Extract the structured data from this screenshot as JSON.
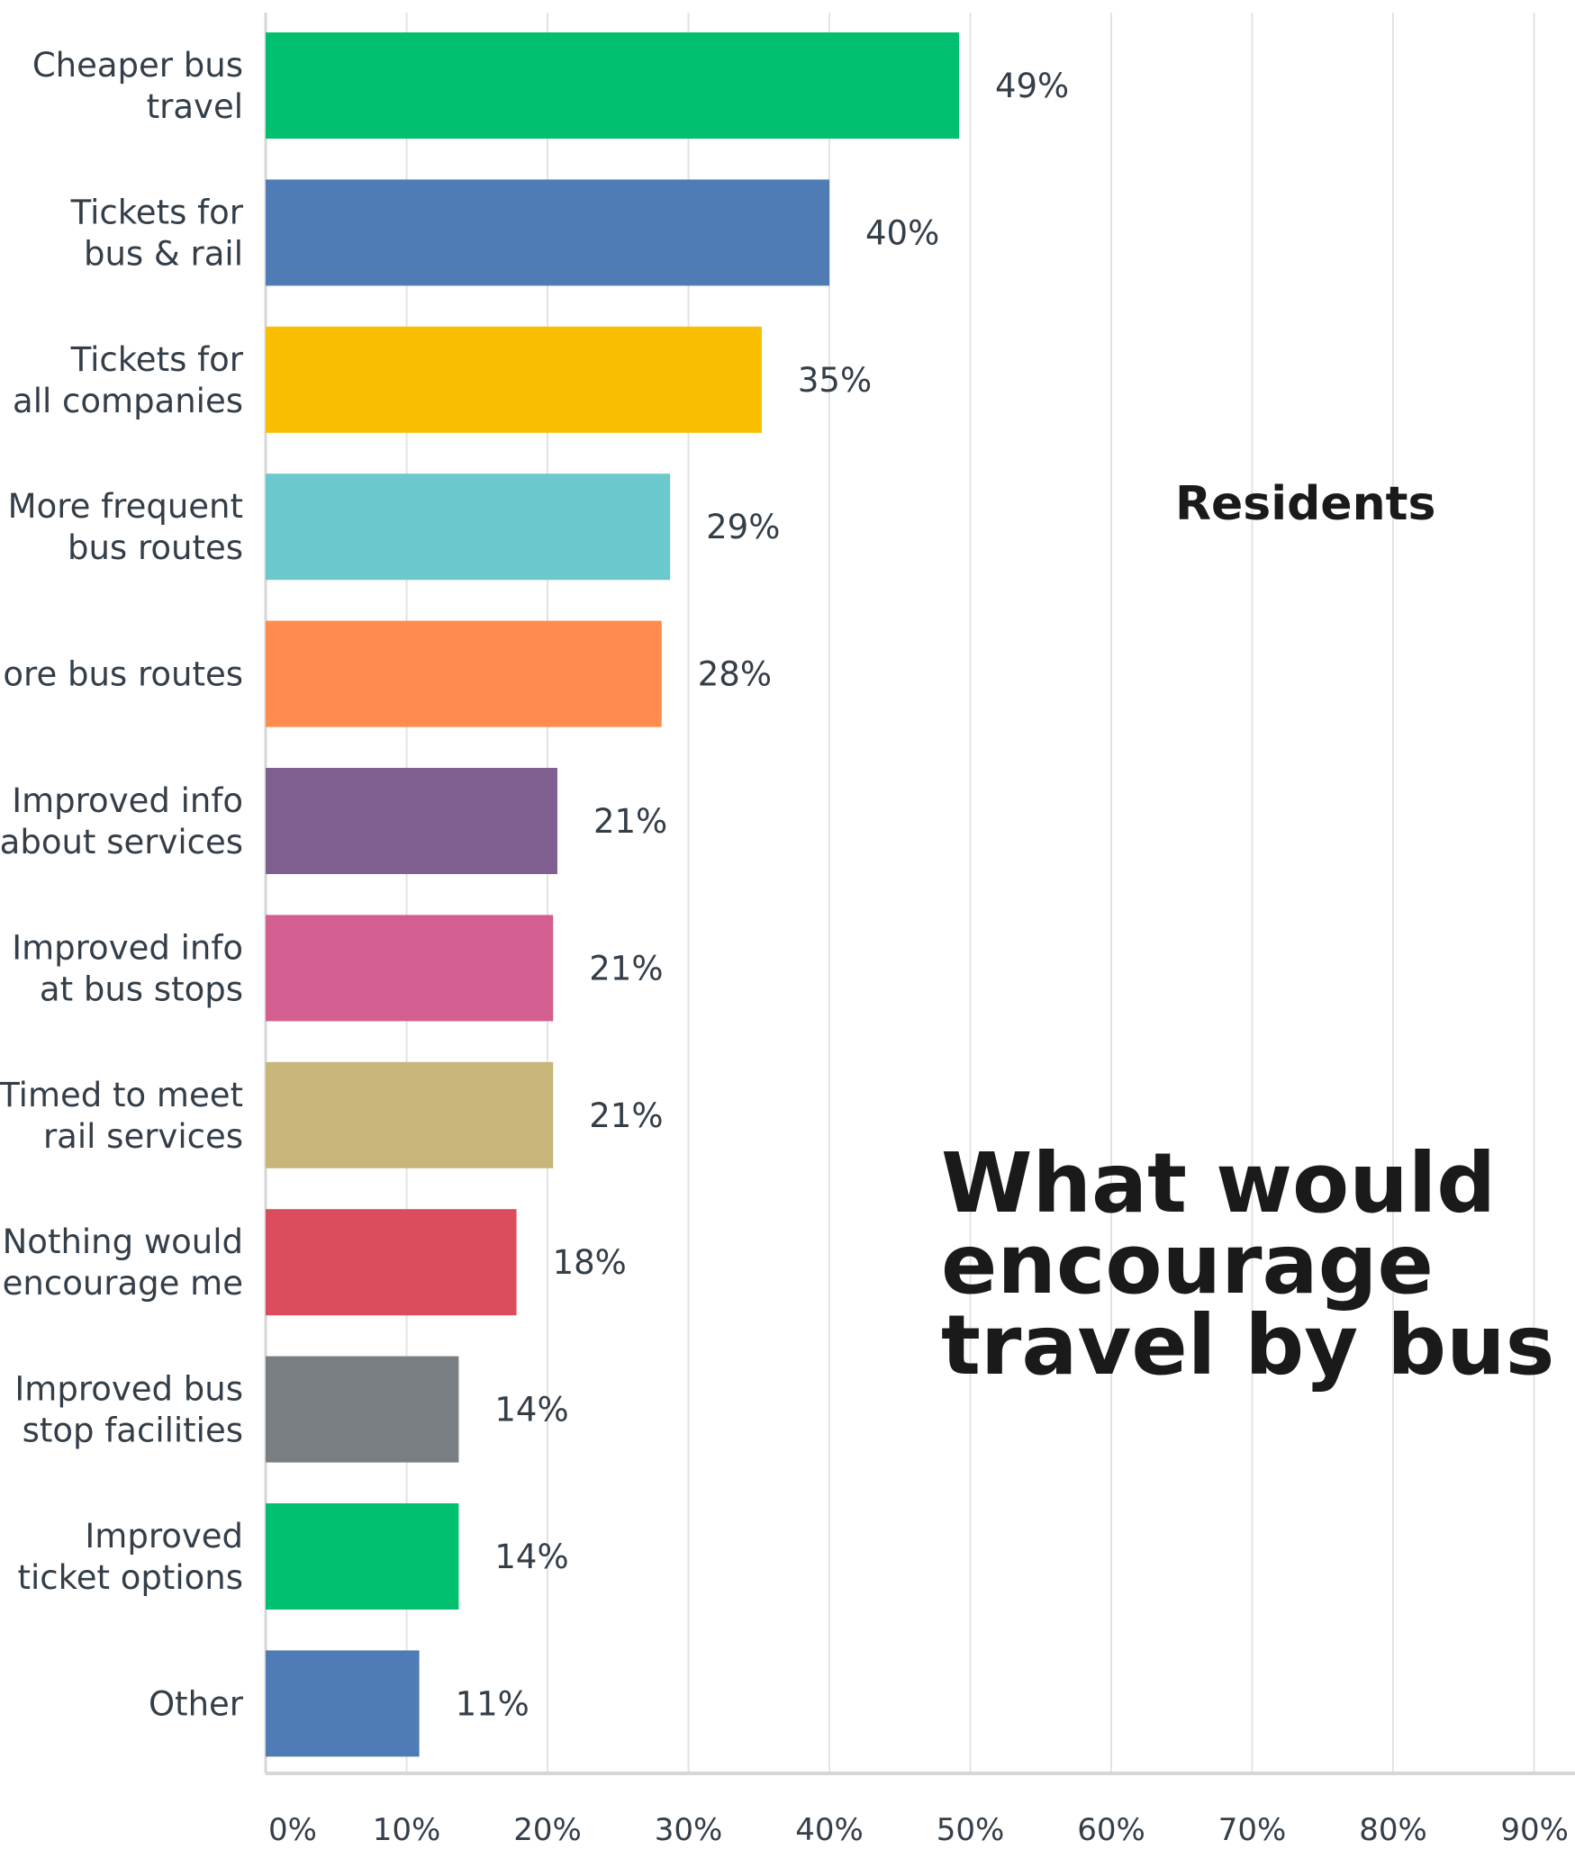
{
  "chart_data": {
    "type": "bar",
    "orientation": "horizontal",
    "title": "What would encourage travel by bus",
    "annotation": "Residents",
    "categories": [
      [
        "Cheaper bus",
        "travel"
      ],
      [
        "Tickets for",
        "bus & rail"
      ],
      [
        "Tickets for",
        "all companies"
      ],
      [
        "More frequent",
        "bus routes"
      ],
      [
        "More bus routes"
      ],
      [
        "Improved info",
        "about services"
      ],
      [
        "Improved info",
        "at bus stops"
      ],
      [
        "Timed to meet",
        "rail services"
      ],
      [
        "Nothing would",
        "encourage me"
      ],
      [
        "Improved bus",
        "stop facilities"
      ],
      [
        "Improved",
        "ticket options"
      ],
      [
        "Other"
      ]
    ],
    "values": [
      49,
      40,
      35,
      29,
      28,
      21,
      21,
      21,
      18,
      14,
      14,
      11
    ],
    "bar_values": [
      49.2,
      40.0,
      35.2,
      28.7,
      28.1,
      20.7,
      20.4,
      20.4,
      17.8,
      13.7,
      13.7,
      10.9
    ],
    "value_labels": [
      "49%",
      "40%",
      "35%",
      "29%",
      "28%",
      "21%",
      "21%",
      "21%",
      "18%",
      "14%",
      "14%",
      "11%"
    ],
    "colors": [
      "#00bf6f",
      "#507cb6",
      "#f9be00",
      "#6bc8cd",
      "#ff8b4f",
      "#7f5f90",
      "#d25f90",
      "#c8b57a",
      "#db4d5c",
      "#787e82",
      "#00bf6f",
      "#507cb6"
    ],
    "xlim": [
      0,
      90
    ],
    "xticks": [
      0,
      10,
      20,
      30,
      40,
      50,
      60,
      70,
      80,
      90
    ],
    "xtick_labels": [
      "0%",
      "10%",
      "20%",
      "30%",
      "40%",
      "50%",
      "60%",
      "70%",
      "80%",
      "90%"
    ],
    "grid": true,
    "gridline_color": "#e3e3e3",
    "axis_color": "#d6d6d6",
    "label_color": "#333e48"
  }
}
